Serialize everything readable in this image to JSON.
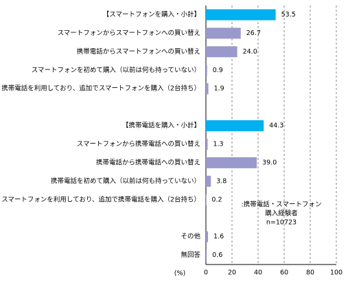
{
  "chart_data": {
    "type": "barh",
    "categories": [
      "【スマートフォンを購入・小計】",
      "スマートフォンからスマートフォンへの買い替え",
      "携帯電話からスマートフォンへの買い替え",
      "スマートフォンを初めて購入（以前は何も持っていない）",
      "携帯電話を利用しており、追加でスマートフォンを購入（2台持ち）",
      null,
      "【携帯電話を購入・小計】",
      "スマートフォンから携帯電話への買い替え",
      "携帯電話から携帯電話への買い替え",
      "携帯電話を初めて購入（以前は何も持っていない）",
      "スマートフォンを利用しており、追加で携帯電話を購入（2台持ち）",
      null,
      "その他",
      "無回答"
    ],
    "values": [
      53.5,
      26.7,
      24.0,
      0.9,
      1.9,
      null,
      44.3,
      1.3,
      39.0,
      3.8,
      0.2,
      null,
      1.6,
      0.6
    ],
    "value_labels": [
      "53.5",
      "26.7",
      "24.0",
      "0.9",
      "1.9",
      null,
      "44.3",
      "1.3",
      "39.0",
      "3.8",
      "0.2",
      null,
      "1.6",
      "0.6"
    ],
    "colors": [
      "#00b0f0",
      "#9999cc",
      "#9999cc",
      "#9999cc",
      "#9999cc",
      null,
      "#00b0f0",
      "#9999cc",
      "#9999cc",
      "#9999cc",
      "#9999cc",
      null,
      "#9999cc",
      "#9999cc"
    ],
    "xlim": [
      0,
      100
    ],
    "xticks": [
      0,
      20,
      40,
      60,
      80,
      100
    ],
    "x_label": "(%)",
    "grid": true,
    "annotation": [
      ":携帯電話・スマートフォン",
      "購入経験者",
      "n=10723"
    ]
  }
}
